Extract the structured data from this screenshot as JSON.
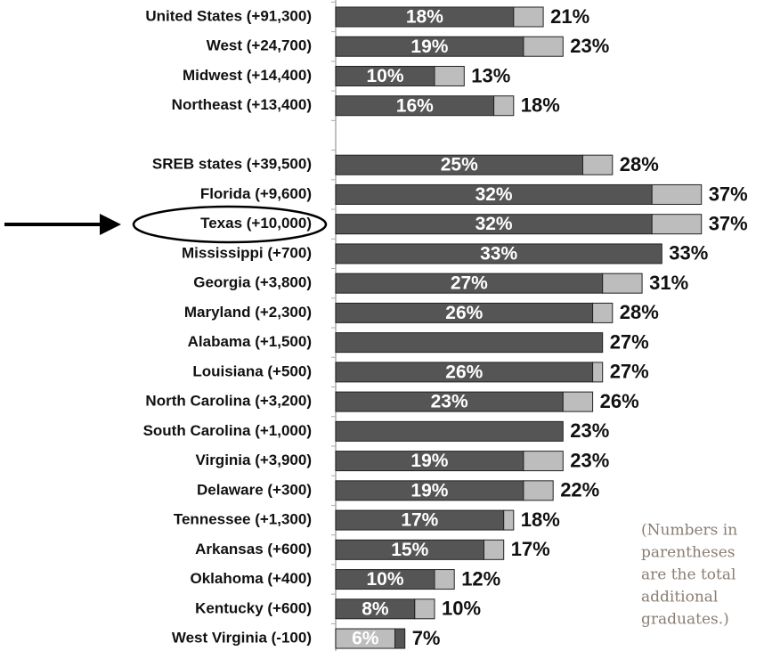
{
  "chart_data": {
    "type": "stacked-bar-horizontal",
    "categories": [
      "United States (+91,300)",
      "West (+24,700)",
      "Midwest (+14,400)",
      "Northeast (+13,400)",
      null,
      "SREB states (+39,500)",
      "Florida (+9,600)",
      "Texas (+10,000)",
      "Mississippi (+700)",
      "Georgia (+3,800)",
      "Maryland (+2,300)",
      "Alabama (+1,500)",
      "Louisiana (+500)",
      "North Carolina (+3,200)",
      "South Carolina (+1,000)",
      "Virginia (+3,900)",
      "Delaware (+300)",
      "Tennessee (+1,300)",
      "Arkansas (+600)",
      "Oklahoma (+400)",
      "Kentucky (+600)",
      "West Virginia (-100)"
    ],
    "series": [
      {
        "values": [
          18,
          19,
          10,
          16,
          null,
          25,
          32,
          32,
          33,
          27,
          26,
          27,
          26,
          23,
          23,
          19,
          19,
          17,
          15,
          10,
          8,
          6
        ],
        "value_labels": [
          "18%",
          "19%",
          "10%",
          "16%",
          null,
          "25%",
          "32%",
          "32%",
          "33%",
          "27%",
          "26%",
          null,
          "26%",
          "23%",
          null,
          "19%",
          "19%",
          "17%",
          "15%",
          "10%",
          "8%",
          "6%"
        ],
        "colors": [
          "#555555",
          "#555555",
          "#555555",
          "#555555",
          null,
          "#555555",
          "#555555",
          "#555555",
          "#555555",
          "#555555",
          "#555555",
          "#555555",
          "#555555",
          "#555555",
          "#555555",
          "#555555",
          "#555555",
          "#555555",
          "#555555",
          "#555555",
          "#555555",
          "#bdbdbd"
        ]
      },
      {
        "values": [
          3,
          4,
          3,
          2,
          null,
          3,
          5,
          5,
          0,
          4,
          2,
          0,
          1,
          3,
          0,
          4,
          3,
          1,
          2,
          2,
          2,
          1
        ],
        "colors": [
          "#bdbdbd",
          "#bdbdbd",
          "#bdbdbd",
          "#bdbdbd",
          null,
          "#bdbdbd",
          "#bdbdbd",
          "#bdbdbd",
          "#bdbdbd",
          "#bdbdbd",
          "#bdbdbd",
          "#bdbdbd",
          "#bdbdbd",
          "#bdbdbd",
          "#bdbdbd",
          "#bdbdbd",
          "#bdbdbd",
          "#bdbdbd",
          "#bdbdbd",
          "#bdbdbd",
          "#bdbdbd",
          "#555555"
        ]
      }
    ],
    "totals": {
      "values": [
        21,
        23,
        13,
        18,
        null,
        28,
        37,
        37,
        33,
        31,
        28,
        27,
        27,
        26,
        23,
        23,
        22,
        18,
        17,
        12,
        10,
        7
      ],
      "value_labels": [
        "21%",
        "23%",
        "13%",
        "18%",
        null,
        "28%",
        "37%",
        "37%",
        "33%",
        "31%",
        "28%",
        "27%",
        "27%",
        "26%",
        "23%",
        "23%",
        "22%",
        "18%",
        "17%",
        "12%",
        "10%",
        "7%"
      ]
    },
    "xlim": [
      0,
      40
    ],
    "annotation": [
      "(Numbers in",
      "parentheses",
      "are the total",
      "additional",
      "graduates.)"
    ]
  }
}
